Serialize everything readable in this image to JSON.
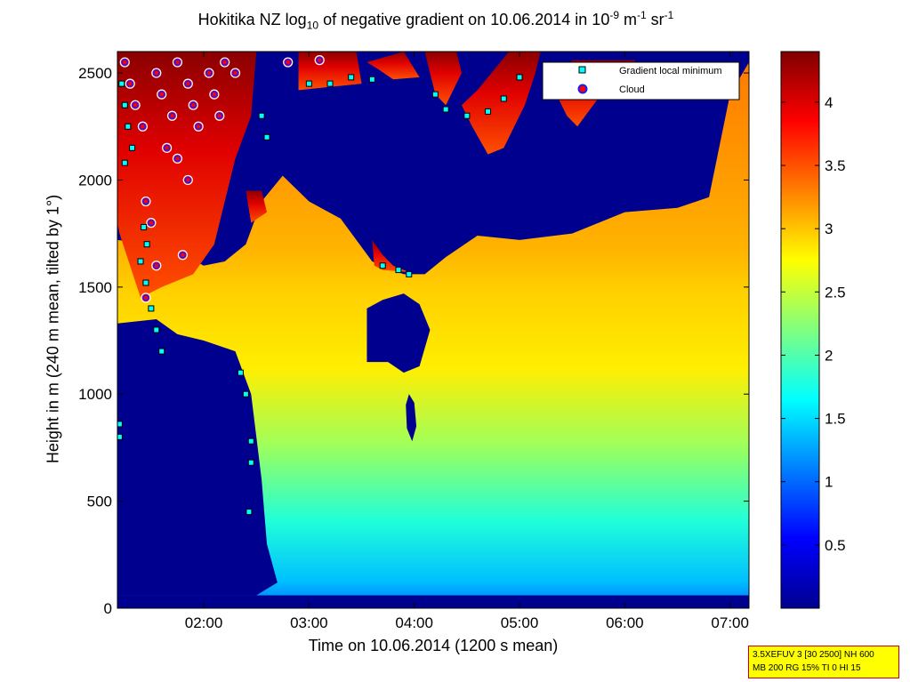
{
  "chart_data": {
    "type": "heatmap",
    "title": {
      "prefix": "Hokitika NZ log",
      "sub": "10",
      "middle": " of negative gradient on 10.06.2014 in 10",
      "exp1": "-9",
      "unit1": " m",
      "exp2": "-1",
      "unit2": " sr",
      "exp3": "-1"
    },
    "xlabel": "Time on 10.06.2014 (1200 s mean)",
    "ylabel": "Height in m (240 m mean, tilted by 1°)",
    "x_ticks": [
      "02:00",
      "03:00",
      "04:00",
      "05:00",
      "06:00",
      "07:00"
    ],
    "x_tick_hours": [
      2,
      3,
      4,
      5,
      6,
      7
    ],
    "xlim_hours": [
      1.18,
      7.18
    ],
    "y_ticks": [
      "0",
      "500",
      "1000",
      "1500",
      "2000",
      "2500"
    ],
    "y_tick_values": [
      0,
      500,
      1000,
      1500,
      2000,
      2500
    ],
    "ylim": [
      0,
      2600
    ],
    "colorbar": {
      "min": 0,
      "max": 4.4,
      "colormap": "jet",
      "ticks": [
        "0.5",
        "1",
        "1.5",
        "2",
        "2.5",
        "3",
        "3.5",
        "4"
      ],
      "tick_values": [
        0.5,
        1,
        1.5,
        2,
        2.5,
        3,
        3.5,
        4
      ]
    },
    "legend": {
      "placement": "top-right",
      "entries": [
        {
          "label": "Gradient local minimum",
          "marker": "square",
          "color": "#00ffff"
        },
        {
          "label": "Cloud",
          "marker": "circle",
          "color": "#ff0000"
        }
      ]
    },
    "boundary_layer_top": [
      [
        1.18,
        1720
      ],
      [
        1.5,
        1700
      ],
      [
        1.8,
        1650
      ],
      [
        2.0,
        1600
      ],
      [
        2.2,
        1620
      ],
      [
        2.4,
        1700
      ],
      [
        2.55,
        1900
      ],
      [
        2.75,
        2020
      ],
      [
        3.0,
        1900
      ],
      [
        3.3,
        1820
      ],
      [
        3.6,
        1620
      ],
      [
        3.9,
        1560
      ],
      [
        4.1,
        1560
      ],
      [
        4.3,
        1640
      ],
      [
        4.6,
        1740
      ],
      [
        5.0,
        1720
      ],
      [
        5.5,
        1750
      ],
      [
        6.0,
        1850
      ],
      [
        6.5,
        1870
      ],
      [
        6.8,
        1920
      ],
      [
        7.0,
        2400
      ],
      [
        7.18,
        2550
      ]
    ],
    "gradient_local_minimum": [
      [
        1.22,
        2450
      ],
      [
        1.25,
        2350
      ],
      [
        1.28,
        2250
      ],
      [
        1.32,
        2150
      ],
      [
        1.25,
        2080
      ],
      [
        1.43,
        1780
      ],
      [
        1.46,
        1700
      ],
      [
        1.4,
        1620
      ],
      [
        1.45,
        1520
      ],
      [
        1.5,
        1400
      ],
      [
        1.55,
        1300
      ],
      [
        1.6,
        1200
      ],
      [
        1.2,
        860
      ],
      [
        1.2,
        800
      ],
      [
        2.35,
        1100
      ],
      [
        2.4,
        1000
      ],
      [
        2.45,
        780
      ],
      [
        2.45,
        680
      ],
      [
        2.43,
        450
      ],
      [
        2.55,
        2300
      ],
      [
        2.6,
        2200
      ],
      [
        3.0,
        2450
      ],
      [
        3.2,
        2450
      ],
      [
        3.4,
        2480
      ],
      [
        3.6,
        2470
      ],
      [
        4.2,
        2400
      ],
      [
        4.3,
        2330
      ],
      [
        3.7,
        1600
      ],
      [
        3.85,
        1580
      ],
      [
        3.95,
        1560
      ],
      [
        4.5,
        2300
      ],
      [
        4.7,
        2320
      ],
      [
        4.85,
        2380
      ],
      [
        5.0,
        2480
      ]
    ],
    "cloud": [
      [
        1.25,
        2550
      ],
      [
        1.3,
        2450
      ],
      [
        1.35,
        2350
      ],
      [
        1.42,
        2250
      ],
      [
        1.55,
        2500
      ],
      [
        1.6,
        2400
      ],
      [
        1.7,
        2300
      ],
      [
        1.75,
        2550
      ],
      [
        1.85,
        2450
      ],
      [
        1.9,
        2350
      ],
      [
        1.95,
        2250
      ],
      [
        2.05,
        2500
      ],
      [
        2.1,
        2400
      ],
      [
        2.15,
        2300
      ],
      [
        2.2,
        2550
      ],
      [
        1.65,
        2150
      ],
      [
        1.75,
        2100
      ],
      [
        1.85,
        2000
      ],
      [
        1.45,
        1900
      ],
      [
        1.5,
        1800
      ],
      [
        1.55,
        1600
      ],
      [
        1.45,
        1450
      ],
      [
        2.3,
        2500
      ],
      [
        2.8,
        2550
      ],
      [
        3.1,
        2560
      ],
      [
        1.8,
        1650
      ]
    ]
  },
  "info_box": {
    "line1": "3.5XEFUV 3 [30 2500] NH 600",
    "line2": "MB 200 RG 15% TI 0 HI 15"
  }
}
